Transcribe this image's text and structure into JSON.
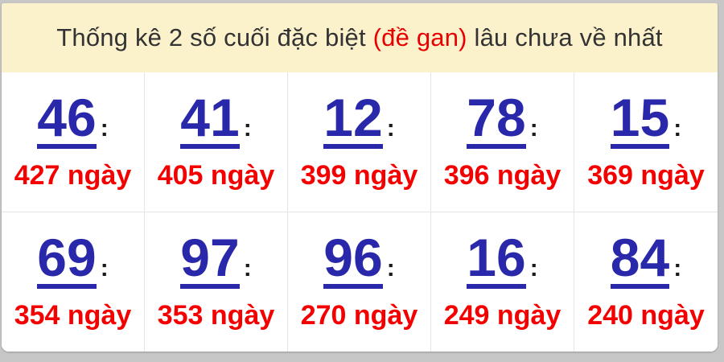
{
  "title": {
    "prefix": "Thống kê 2 số cuối đặc biệt ",
    "highlight": "(đề gan)",
    "suffix": " lâu chưa về nhất"
  },
  "labels": {
    "colon": ":"
  },
  "cells": [
    {
      "number": "46",
      "days_text": "427 ngày"
    },
    {
      "number": "41",
      "days_text": "405 ngày"
    },
    {
      "number": "12",
      "days_text": "399 ngày"
    },
    {
      "number": "78",
      "days_text": "396 ngày"
    },
    {
      "number": "15",
      "days_text": "369 ngày"
    },
    {
      "number": "69",
      "days_text": "354 ngày"
    },
    {
      "number": "97",
      "days_text": "353 ngày"
    },
    {
      "number": "96",
      "days_text": "270 ngày"
    },
    {
      "number": "16",
      "days_text": "249 ngày"
    },
    {
      "number": "84",
      "days_text": "240 ngày"
    }
  ],
  "colors": {
    "header_bg": "#fbf2cc",
    "title_color": "#333333",
    "title_red": "#e80000",
    "num_blue": "#2a28aa",
    "days_red": "#f50000",
    "grid_line": "#e4e4e4",
    "page_bg": "#c7c7c7"
  }
}
